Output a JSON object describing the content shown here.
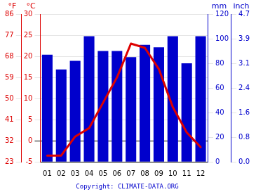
{
  "chart_data": {
    "type": "bar",
    "categories": [
      "01",
      "02",
      "03",
      "04",
      "05",
      "06",
      "07",
      "08",
      "09",
      "10",
      "11",
      "12"
    ],
    "series": [
      {
        "type": "bar",
        "color": "#0000cc",
        "axis": "y2",
        "values": [
          87,
          75,
          82,
          102,
          90,
          90,
          85,
          95,
          93,
          102,
          80,
          102
        ]
      },
      {
        "type": "line",
        "color": "#dd0000",
        "values": [
          -3.5,
          -3.5,
          1,
          3,
          9,
          15,
          23,
          22,
          17,
          8,
          2,
          -1.5
        ]
      }
    ],
    "ylabel": "°C",
    "ylim": [
      -5,
      30
    ],
    "yticks": [
      -5,
      0,
      5,
      10,
      15,
      20,
      25,
      30
    ],
    "y2label": "mm",
    "y2lim": [
      0,
      120
    ],
    "y2ticks": [
      0,
      20,
      40,
      60,
      80,
      100,
      120
    ],
    "y3label": "°F",
    "y3lim": [
      23,
      86
    ],
    "y3ticks": [
      23,
      32,
      41,
      50,
      59,
      68,
      77,
      86
    ],
    "y4label": "inch",
    "y4lim": [
      0,
      120
    ],
    "y4ticks": [
      {
        "value": 0,
        "label": "0.0"
      },
      {
        "value": 20,
        "label": "0.8"
      },
      {
        "value": 40,
        "label": "1.6"
      },
      {
        "value": 60,
        "label": "2.4"
      },
      {
        "value": 80,
        "label": "3.1"
      },
      {
        "value": 100,
        "label": "3.9"
      },
      {
        "value": 120,
        "label": "4.7"
      }
    ],
    "grid": true,
    "annotation": "Copyright: CLIMATE-DATA.ORG"
  }
}
